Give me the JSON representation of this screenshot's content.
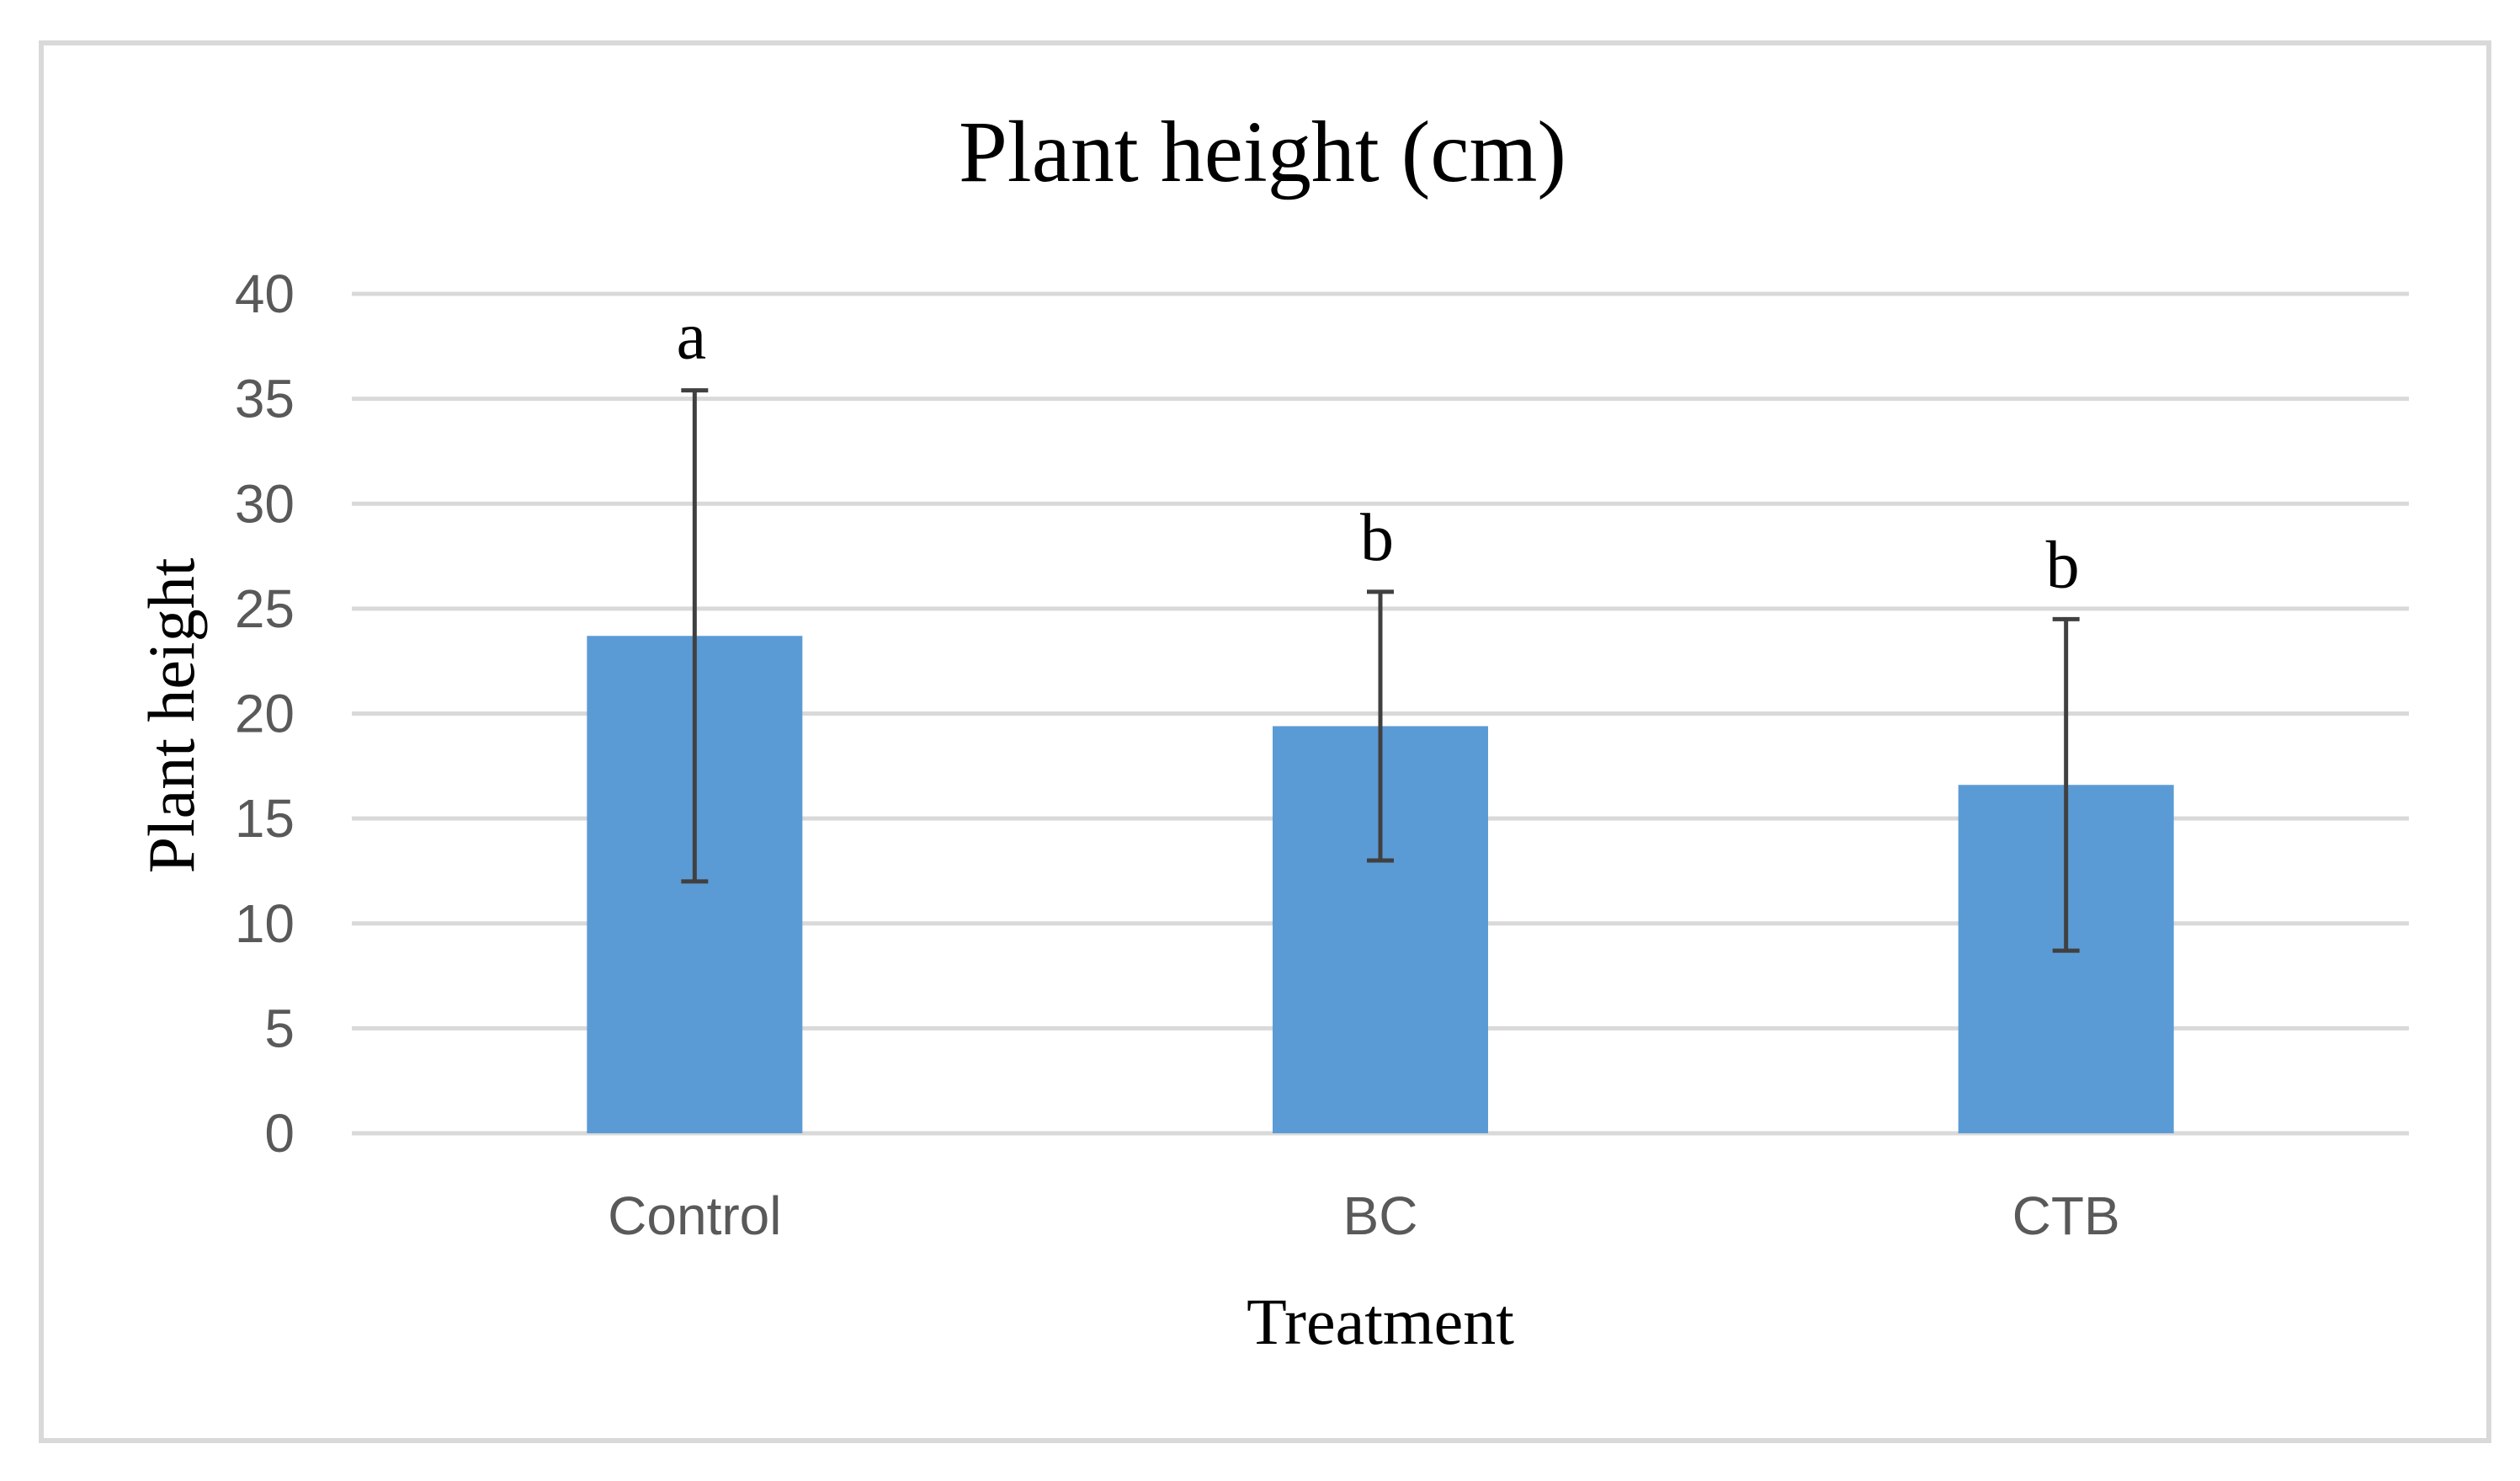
{
  "chart_data": {
    "type": "bar",
    "title": "Plant height (cm)",
    "xlabel": "Treatment",
    "ylabel": "Plant height",
    "categories": [
      "Control",
      "BC",
      "CTB"
    ],
    "values": [
      23.7,
      19.4,
      16.6
    ],
    "error": [
      11.7,
      6.4,
      7.9
    ],
    "significance_letters": [
      "a",
      "b",
      "b"
    ],
    "ylim": [
      0,
      40
    ],
    "yticks": [
      0,
      5,
      10,
      15,
      20,
      25,
      30,
      35,
      40
    ],
    "grid": true,
    "legend": "none",
    "colors": {
      "bar": "#5b9bd5",
      "error_bar": "#404040",
      "grid": "#d9d9d9",
      "tick_text": "#595959",
      "text": "#000000"
    }
  }
}
